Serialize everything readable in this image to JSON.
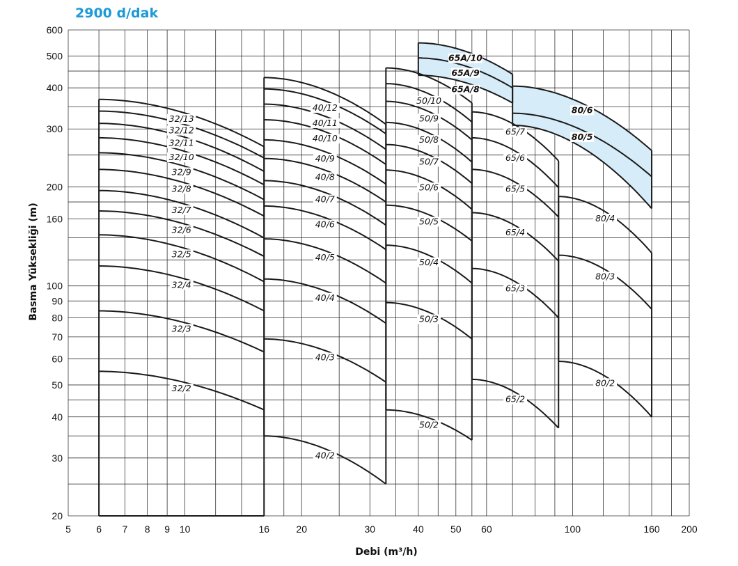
{
  "chart_data": {
    "type": "line",
    "title": "2900 d/dak",
    "title_color": "#1c9ad6",
    "xlabel": "Debi (m³/h)",
    "ylabel": "Basma Yüksekliği (m)",
    "x_scale": "log",
    "y_scale": "log",
    "xlim": [
      5,
      200
    ],
    "ylim": [
      20,
      600
    ],
    "grid": true,
    "x_ticks": [
      5,
      6,
      7,
      8,
      9,
      10,
      16,
      20,
      30,
      40,
      50,
      60,
      100,
      160,
      200
    ],
    "y_ticks": [
      20,
      30,
      40,
      50,
      60,
      70,
      80,
      90,
      100,
      160,
      200,
      300,
      400,
      500,
      600
    ],
    "highlight_color": "#d6ecf8",
    "groups": [
      {
        "name": "32",
        "x_range": [
          6,
          16
        ],
        "series": [
          {
            "name": "32/2",
            "head_start": 55,
            "head_end": 42,
            "label": "32/2"
          },
          {
            "name": "32/3",
            "head_start": 84,
            "head_end": 63,
            "label": "32/3"
          },
          {
            "name": "32/4",
            "head_start": 115,
            "head_end": 84,
            "label": "32/4"
          },
          {
            "name": "32/5",
            "head_start": 143,
            "head_end": 103,
            "label": "32/5"
          },
          {
            "name": "32/6",
            "head_start": 169,
            "head_end": 123,
            "label": "32/6"
          },
          {
            "name": "32/7",
            "head_start": 195,
            "head_end": 140,
            "label": "32/7"
          },
          {
            "name": "32/8",
            "head_start": 226,
            "head_end": 163,
            "label": "32/8"
          },
          {
            "name": "32/9",
            "head_start": 254,
            "head_end": 183,
            "label": "32/9"
          },
          {
            "name": "32/10",
            "head_start": 282,
            "head_end": 203,
            "label": "32/10"
          },
          {
            "name": "32/11",
            "head_start": 312,
            "head_end": 223,
            "label": "32/11"
          },
          {
            "name": "32/12",
            "head_start": 340,
            "head_end": 245,
            "label": "32/12"
          },
          {
            "name": "32/13",
            "head_start": 369,
            "head_end": 265,
            "label": "32/13"
          }
        ]
      },
      {
        "name": "40",
        "x_range": [
          16,
          33
        ],
        "series": [
          {
            "name": "40/2",
            "head_start": 35,
            "head_end": 25,
            "label": "40/2"
          },
          {
            "name": "40/3",
            "head_start": 69,
            "head_end": 51,
            "label": "40/3"
          },
          {
            "name": "40/4",
            "head_start": 105,
            "head_end": 77,
            "label": "40/4"
          },
          {
            "name": "40/5",
            "head_start": 139,
            "head_end": 102,
            "label": "40/5"
          },
          {
            "name": "40/6",
            "head_start": 175,
            "head_end": 129,
            "label": "40/6"
          },
          {
            "name": "40/7",
            "head_start": 209,
            "head_end": 153,
            "label": "40/7"
          },
          {
            "name": "40/8",
            "head_start": 244,
            "head_end": 180,
            "label": "40/8"
          },
          {
            "name": "40/9",
            "head_start": 278,
            "head_end": 204,
            "label": "40/9"
          },
          {
            "name": "40/10",
            "head_start": 320,
            "head_end": 234,
            "label": "40/10"
          },
          {
            "name": "40/11",
            "head_start": 357,
            "head_end": 260,
            "label": "40/11"
          },
          {
            "name": "40/12",
            "head_start": 397,
            "head_end": 290,
            "label": "40/12"
          },
          {
            "name": "40/12 top",
            "head_start": 430,
            "head_end": 310,
            "label": ""
          }
        ]
      },
      {
        "name": "50",
        "x_range": [
          33,
          55
        ],
        "series": [
          {
            "name": "50/2",
            "head_start": 42,
            "head_end": 34,
            "label": "50/2"
          },
          {
            "name": "50/3",
            "head_start": 89,
            "head_end": 69,
            "label": "50/3"
          },
          {
            "name": "50/4",
            "head_start": 133,
            "head_end": 102,
            "label": "50/4"
          },
          {
            "name": "50/5",
            "head_start": 176,
            "head_end": 137,
            "label": "50/5"
          },
          {
            "name": "50/6",
            "head_start": 225,
            "head_end": 171,
            "label": "50/6"
          },
          {
            "name": "50/7",
            "head_start": 269,
            "head_end": 205,
            "label": "50/7"
          },
          {
            "name": "50/8",
            "head_start": 314,
            "head_end": 238,
            "label": "50/8"
          },
          {
            "name": "50/9",
            "head_start": 364,
            "head_end": 278,
            "label": "50/9"
          },
          {
            "name": "50/10",
            "head_start": 412,
            "head_end": 315,
            "label": "50/10"
          },
          {
            "name": "50/10 top",
            "head_start": 460,
            "head_end": 360,
            "label": ""
          }
        ]
      },
      {
        "name": "65",
        "x_range": [
          55,
          92
        ],
        "series": [
          {
            "name": "65/2",
            "head_start": 52,
            "head_end": 37,
            "label": "65/2"
          },
          {
            "name": "65/3",
            "head_start": 113,
            "head_end": 80,
            "label": "65/3"
          },
          {
            "name": "65/4",
            "head_start": 167,
            "head_end": 119,
            "label": "65/4"
          },
          {
            "name": "65/5",
            "head_start": 226,
            "head_end": 162,
            "label": "65/5"
          },
          {
            "name": "65/6",
            "head_start": 282,
            "head_end": 199,
            "label": "65/6"
          },
          {
            "name": "65/7",
            "head_start": 338,
            "head_end": 240,
            "label": "65/7"
          }
        ]
      },
      {
        "name": "65A",
        "x_range": [
          40,
          70
        ],
        "highlight": true,
        "series": [
          {
            "name": "65A/8",
            "head_start": 437,
            "head_end": 360,
            "label": "65A/8"
          },
          {
            "name": "65A/9",
            "head_start": 493,
            "head_end": 400,
            "label": "65A/9"
          },
          {
            "name": "65A/10",
            "head_start": 548,
            "head_end": 440,
            "label": "65A/10"
          }
        ]
      },
      {
        "name": "80",
        "x_range": [
          92,
          160
        ],
        "series": [
          {
            "name": "80/2",
            "head_start": 59,
            "head_end": 40,
            "label": "80/2"
          },
          {
            "name": "80/3",
            "head_start": 124,
            "head_end": 85,
            "label": "80/3"
          },
          {
            "name": "80/4",
            "head_start": 187,
            "head_end": 126,
            "label": "80/4"
          }
        ]
      },
      {
        "name": "80 high",
        "x_range": [
          70,
          160
        ],
        "highlight": true,
        "series": [
          {
            "name": "80/5",
            "head_start": 335,
            "head_end": 215,
            "label": "80/5"
          },
          {
            "name": "80/6",
            "head_start": 405,
            "head_end": 258,
            "label": "80/6"
          },
          {
            "name": "80 base",
            "head_start": 308,
            "head_end": 172,
            "label": ""
          }
        ]
      }
    ]
  }
}
